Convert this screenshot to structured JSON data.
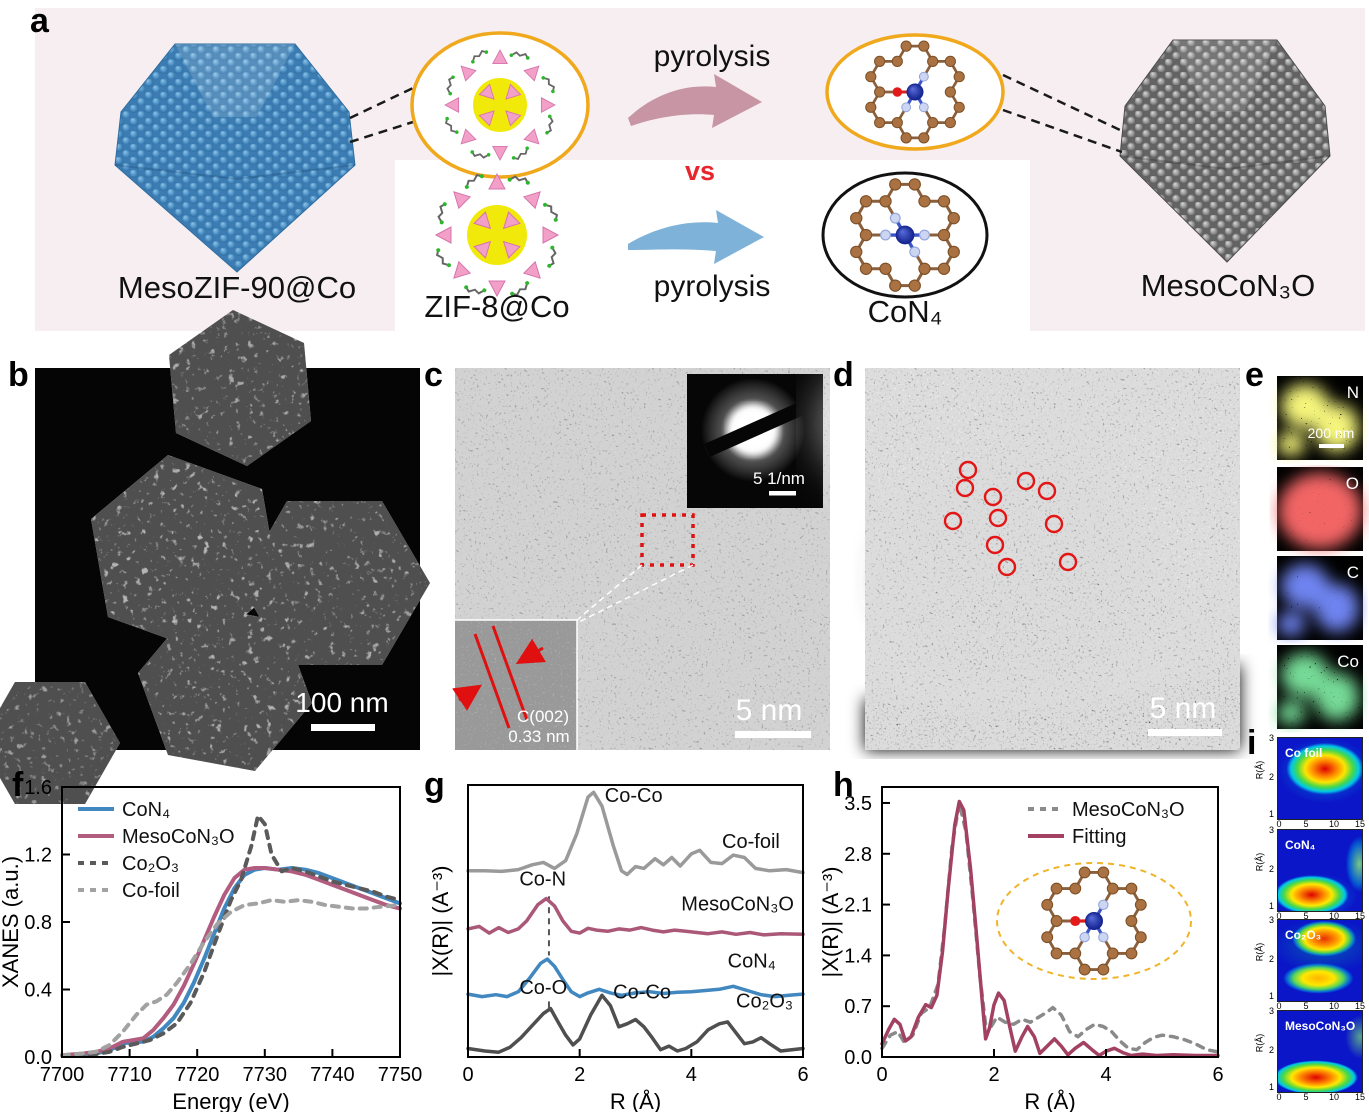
{
  "panel_a": {
    "label": "a",
    "left_particle_label": "MesoZIF-90@Co",
    "zif_inset_label": "ZIF-8@Co",
    "vs_label": "vs",
    "pyrolysis_top": "pyrolysis",
    "pyrolysis_bottom": "pyrolysis",
    "con4_label": "CoN₄",
    "right_particle_label": "MesoCoN₃O",
    "colors": {
      "background": "#f7eef1",
      "left_particle": "#4a8fc4",
      "right_particle": "#787878",
      "arrow_top": "#c795a4",
      "arrow_bottom": "#7fb2d8",
      "vs": "#e8252c",
      "inset_ring": "#f0a81c"
    }
  },
  "panel_b": {
    "label": "b",
    "scalebar": "100 nm"
  },
  "panel_c": {
    "label": "c",
    "scalebar": "5 nm",
    "saed_scalebar": "5 1/nm",
    "lattice_label_line1": "C(002)",
    "lattice_label_line2": "0.33 nm"
  },
  "panel_d": {
    "label": "d",
    "scalebar": "5 nm",
    "marker_color": "#e31515",
    "atom_markers": [
      [
        103,
        102
      ],
      [
        161,
        113
      ],
      [
        182,
        123
      ],
      [
        100,
        120
      ],
      [
        128,
        129
      ],
      [
        88,
        153
      ],
      [
        133,
        150
      ],
      [
        189,
        156
      ],
      [
        130,
        177
      ],
      [
        142,
        199
      ],
      [
        203,
        194
      ]
    ]
  },
  "panel_e": {
    "label": "e",
    "scalebar": "200 nm",
    "maps": [
      {
        "element": "N",
        "color": "#e8e832"
      },
      {
        "element": "O",
        "color": "#e22222"
      },
      {
        "element": "C",
        "color": "#2a3ae0"
      },
      {
        "element": "Co",
        "color": "#2eb44e"
      }
    ]
  },
  "panel_f": {
    "label": "f"
  },
  "panel_g": {
    "label": "g"
  },
  "panel_h": {
    "label": "h"
  },
  "panel_i": {
    "label": "i",
    "ylabel": "R(Å)",
    "yticks": [
      "3",
      "2",
      "1"
    ],
    "xticks": [
      "0",
      "5",
      "10",
      "15"
    ],
    "maps": [
      {
        "name": "Co foil"
      },
      {
        "name": "CoN₄"
      },
      {
        "name": "Co₂O₃"
      },
      {
        "name": "MesoCoN₃O"
      }
    ]
  },
  "chart_data": [
    {
      "panel": "f",
      "type": "line",
      "title": "",
      "xlabel": "Energy (eV)",
      "ylabel": "XANES (a.u.)",
      "xlim": [
        7700,
        7750
      ],
      "ylim": [
        0,
        1.6
      ],
      "xticks": [
        7700,
        7710,
        7720,
        7730,
        7740,
        7750
      ],
      "xtick_labels": [
        "7700",
        "7710",
        "7720",
        "7730",
        "7740",
        "7750"
      ],
      "yticks": [
        0,
        0.4,
        0.8,
        1.2,
        1.6
      ],
      "ytick_labels": [
        "0.0",
        "0.4",
        "0.8",
        "1.2",
        "1.6"
      ],
      "legend": {
        "anchor": "tl"
      },
      "grid": false,
      "series": [
        {
          "name": "CoN₄",
          "color": "#4187c0",
          "width": 4,
          "x": [
            7700,
            7703,
            7705,
            7707,
            7709,
            7710.5,
            7712,
            7713.5,
            7715,
            7716.5,
            7718,
            7719.5,
            7721,
            7722.5,
            7724,
            7725.5,
            7727,
            7728.5,
            7730,
            7732,
            7734,
            7736,
            7738,
            7740,
            7742,
            7744,
            7746,
            7748,
            7750
          ],
          "y": [
            0.01,
            0.01,
            0.02,
            0.04,
            0.08,
            0.09,
            0.09,
            0.12,
            0.17,
            0.23,
            0.32,
            0.44,
            0.58,
            0.73,
            0.88,
            1.0,
            1.08,
            1.11,
            1.12,
            1.11,
            1.12,
            1.11,
            1.09,
            1.06,
            1.03,
            1.0,
            0.97,
            0.94,
            0.91
          ]
        },
        {
          "name": "MesoCoN₃O",
          "color": "#b25c7f",
          "width": 4,
          "x": [
            7700,
            7703,
            7705,
            7707,
            7709,
            7710.5,
            7712,
            7713.5,
            7715,
            7716.5,
            7718,
            7719.5,
            7721,
            7722.5,
            7724,
            7725.5,
            7727,
            7728.5,
            7730,
            7732,
            7734,
            7736,
            7738,
            7740,
            7742,
            7744,
            7746,
            7748,
            7750
          ],
          "y": [
            0.01,
            0.02,
            0.03,
            0.05,
            0.09,
            0.1,
            0.11,
            0.16,
            0.23,
            0.31,
            0.42,
            0.55,
            0.69,
            0.83,
            0.96,
            1.06,
            1.11,
            1.12,
            1.12,
            1.11,
            1.1,
            1.08,
            1.05,
            1.02,
            0.99,
            0.96,
            0.93,
            0.9,
            0.88
          ]
        },
        {
          "name": "Co₂O₃",
          "color": "#5a5a5a",
          "width": 4,
          "dash": "7 7",
          "x": [
            7700,
            7704,
            7707,
            7709,
            7711,
            7713,
            7715,
            7717,
            7719,
            7721,
            7723,
            7725,
            7726.5,
            7728,
            7729,
            7730,
            7731,
            7732.5,
            7734,
            7736,
            7738,
            7740,
            7742,
            7744,
            7746,
            7748,
            7750
          ],
          "y": [
            0.01,
            0.01,
            0.03,
            0.06,
            0.08,
            0.1,
            0.14,
            0.2,
            0.32,
            0.5,
            0.72,
            0.93,
            1.05,
            1.25,
            1.43,
            1.38,
            1.2,
            1.1,
            1.12,
            1.1,
            1.07,
            1.04,
            1.02,
            1.0,
            0.98,
            0.95,
            0.93
          ]
        },
        {
          "name": "Co-foil",
          "color": "#a2a2a2",
          "width": 4,
          "dash": "7 7",
          "x": [
            7700,
            7703,
            7705,
            7707,
            7709,
            7711,
            7712.5,
            7714,
            7715.5,
            7717,
            7719,
            7721,
            7723,
            7725,
            7727,
            7729,
            7731,
            7733,
            7735,
            7737,
            7739,
            7741,
            7743,
            7745,
            7747,
            7750
          ],
          "y": [
            0.01,
            0.02,
            0.03,
            0.07,
            0.15,
            0.25,
            0.31,
            0.33,
            0.37,
            0.44,
            0.55,
            0.68,
            0.79,
            0.86,
            0.9,
            0.91,
            0.93,
            0.92,
            0.93,
            0.92,
            0.9,
            0.89,
            0.88,
            0.88,
            0.89,
            0.9
          ]
        }
      ]
    },
    {
      "panel": "g",
      "type": "line",
      "title": "",
      "xlabel": "R (Å)",
      "ylabel": "|X(R)| (A⁻³)",
      "xlim": [
        0,
        6
      ],
      "ylim": [
        0,
        4.5
      ],
      "xticks": [
        0,
        2,
        4,
        6
      ],
      "xtick_labels": [
        "0",
        "2",
        "4",
        "6"
      ],
      "yticks": [],
      "ytick_labels": [],
      "grid": false,
      "ylabel_off": 20,
      "series": [
        {
          "name": "Co-foil",
          "color": "#9a9a9a",
          "width": 3.5,
          "x": [
            0,
            0.3,
            0.6,
            0.9,
            1.15,
            1.35,
            1.55,
            1.75,
            1.95,
            2.15,
            2.25,
            2.4,
            2.6,
            2.75,
            2.85,
            3.0,
            3.15,
            3.35,
            3.5,
            3.65,
            3.8,
            4.0,
            4.15,
            4.35,
            4.55,
            4.75,
            4.95,
            5.15,
            5.4,
            5.7,
            6.0
          ],
          "y": [
            3.08,
            3.08,
            3.07,
            3.1,
            3.18,
            3.22,
            3.12,
            3.25,
            3.7,
            4.3,
            4.38,
            4.15,
            3.5,
            3.08,
            3.02,
            3.15,
            3.12,
            3.28,
            3.18,
            3.3,
            3.16,
            3.36,
            3.42,
            3.22,
            3.2,
            3.34,
            3.3,
            3.12,
            3.08,
            3.1,
            3.05
          ]
        },
        {
          "name": "MesoCoN₃O",
          "color": "#ab5878",
          "width": 3.5,
          "x": [
            0,
            0.2,
            0.38,
            0.55,
            0.72,
            0.9,
            1.05,
            1.25,
            1.4,
            1.55,
            1.7,
            1.85,
            2.0,
            2.15,
            2.3,
            2.5,
            2.7,
            2.9,
            3.1,
            3.3,
            3.5,
            3.7,
            3.9,
            4.1,
            4.3,
            4.55,
            4.8,
            5.05,
            5.3,
            5.6,
            6.0
          ],
          "y": [
            2.12,
            2.16,
            2.05,
            2.14,
            2.06,
            2.12,
            2.25,
            2.52,
            2.62,
            2.5,
            2.25,
            2.08,
            2.05,
            2.13,
            2.1,
            2.08,
            2.12,
            2.1,
            2.14,
            2.1,
            2.07,
            2.1,
            2.08,
            2.06,
            2.04,
            2.07,
            2.03,
            2.06,
            2.02,
            2.04,
            2.03
          ]
        },
        {
          "name": "CoN₄",
          "color": "#4187c0",
          "width": 3.5,
          "x": [
            0,
            0.25,
            0.5,
            0.7,
            0.9,
            1.1,
            1.3,
            1.42,
            1.55,
            1.7,
            1.85,
            2.0,
            2.15,
            2.35,
            2.55,
            2.75,
            3.0,
            3.25,
            3.5,
            3.75,
            4.0,
            4.25,
            4.5,
            4.75,
            5.0,
            5.25,
            5.5,
            5.75,
            6.0
          ],
          "y": [
            1.04,
            1.0,
            1.03,
            1.0,
            1.08,
            1.3,
            1.55,
            1.62,
            1.5,
            1.28,
            1.08,
            1.0,
            1.06,
            1.12,
            1.06,
            1.02,
            1.06,
            1.08,
            1.05,
            1.07,
            1.08,
            1.1,
            1.12,
            1.17,
            1.1,
            1.03,
            1.0,
            1.02,
            1.04
          ]
        },
        {
          "name": "Co₂O₃",
          "color": "#4f4f4f",
          "width": 3.5,
          "x": [
            0,
            0.3,
            0.55,
            0.75,
            0.95,
            1.15,
            1.35,
            1.48,
            1.6,
            1.75,
            1.88,
            2.0,
            2.2,
            2.4,
            2.55,
            2.7,
            2.85,
            3.0,
            3.15,
            3.3,
            3.45,
            3.6,
            3.75,
            3.9,
            4.1,
            4.3,
            4.5,
            4.65,
            4.8,
            4.95,
            5.1,
            5.25,
            5.4,
            5.6,
            5.8,
            6.0
          ],
          "y": [
            0.14,
            0.1,
            0.08,
            0.16,
            0.32,
            0.52,
            0.72,
            0.8,
            0.6,
            0.36,
            0.2,
            0.3,
            0.7,
            1.02,
            0.85,
            0.5,
            0.55,
            0.62,
            0.5,
            0.32,
            0.12,
            0.18,
            0.1,
            0.14,
            0.25,
            0.45,
            0.55,
            0.58,
            0.4,
            0.22,
            0.25,
            0.32,
            0.22,
            0.1,
            0.12,
            0.14
          ]
        }
      ],
      "annotations": [
        {
          "text": "Co-Co",
          "x": 2.45,
          "y": 4.22
        },
        {
          "text": "Co-foil",
          "x": 4.55,
          "y": 3.46
        },
        {
          "text": "Co-N",
          "x": 0.92,
          "y": 2.84
        },
        {
          "text": "MesoCoN₃O",
          "x": 3.82,
          "y": 2.42
        },
        {
          "text": "CoN₄",
          "x": 4.65,
          "y": 1.48
        },
        {
          "text": "Co-O",
          "x": 0.92,
          "y": 1.04
        },
        {
          "text": "Co-Co",
          "x": 2.6,
          "y": 0.97
        },
        {
          "text": "Co₂O₃",
          "x": 4.8,
          "y": 0.82
        }
      ],
      "ann_lines": [
        {
          "x1": 1.45,
          "y1": 2.66,
          "x2": 1.45,
          "y2": 1.68,
          "dash": "6 5"
        },
        {
          "x1": 1.45,
          "y1": 0.92,
          "x2": 1.45,
          "y2": 0.76
        }
      ]
    },
    {
      "panel": "h",
      "type": "line",
      "title": "",
      "xlabel": "R (Å)",
      "ylabel": "|X(R)| (A⁻³)",
      "xlim": [
        0,
        6
      ],
      "ylim": [
        0,
        3.72
      ],
      "xticks": [
        0,
        2,
        4,
        6
      ],
      "xtick_labels": [
        "0",
        "2",
        "4",
        "6"
      ],
      "yticks": [
        0,
        0.7,
        1.4,
        2.1,
        2.8,
        3.5
      ],
      "ytick_labels": [
        "0.0",
        "0.7",
        "1.4",
        "2.1",
        "2.8",
        "3.5"
      ],
      "legend": {
        "anchor": "tr"
      },
      "grid": false,
      "series": [
        {
          "name": "MesoCoN₃O",
          "color": "#8a8a8a",
          "width": 3.5,
          "dash": "7 7",
          "x": [
            0,
            0.15,
            0.28,
            0.4,
            0.55,
            0.7,
            0.85,
            1.0,
            1.12,
            1.25,
            1.38,
            1.5,
            1.62,
            1.75,
            1.85,
            1.95,
            2.05,
            2.2,
            2.35,
            2.5,
            2.65,
            2.8,
            2.95,
            3.05,
            3.2,
            3.35,
            3.5,
            3.65,
            3.8,
            3.95,
            4.1,
            4.25,
            4.4,
            4.55,
            4.7,
            4.85,
            5.0,
            5.2,
            5.4,
            5.6,
            5.8,
            6.0
          ],
          "y": [
            0.12,
            0.3,
            0.35,
            0.2,
            0.3,
            0.6,
            0.68,
            1.0,
            1.8,
            2.9,
            3.5,
            3.1,
            2.2,
            1.1,
            0.45,
            0.42,
            0.55,
            0.48,
            0.45,
            0.52,
            0.48,
            0.55,
            0.62,
            0.68,
            0.58,
            0.35,
            0.28,
            0.38,
            0.45,
            0.42,
            0.35,
            0.22,
            0.12,
            0.1,
            0.2,
            0.27,
            0.3,
            0.28,
            0.24,
            0.18,
            0.1,
            0.07
          ]
        },
        {
          "name": "Fitting",
          "color": "#a24162",
          "width": 3.5,
          "x": [
            0,
            0.12,
            0.22,
            0.32,
            0.42,
            0.52,
            0.65,
            0.78,
            0.88,
            0.98,
            1.08,
            1.18,
            1.3,
            1.38,
            1.46,
            1.58,
            1.68,
            1.78,
            1.85,
            1.92,
            2.0,
            2.08,
            2.18,
            2.28,
            2.38,
            2.5,
            2.6,
            2.72,
            2.82,
            2.95,
            3.08,
            3.2,
            3.32,
            3.45,
            3.6,
            3.75,
            3.88,
            4.0,
            4.15,
            4.3,
            4.45,
            4.65,
            4.9,
            5.2,
            5.6,
            6.0
          ],
          "y": [
            0.18,
            0.38,
            0.52,
            0.45,
            0.22,
            0.28,
            0.55,
            0.72,
            0.68,
            0.85,
            1.45,
            2.3,
            3.2,
            3.52,
            3.4,
            2.6,
            1.75,
            0.85,
            0.25,
            0.4,
            0.72,
            0.88,
            0.78,
            0.42,
            0.08,
            0.28,
            0.42,
            0.28,
            0.05,
            0.15,
            0.25,
            0.15,
            0.03,
            0.12,
            0.2,
            0.1,
            0.02,
            0.08,
            0.12,
            0.06,
            0.02,
            0.04,
            0.02,
            0.03,
            0.02,
            0.02
          ]
        }
      ]
    },
    {
      "panel": "i",
      "type": "heatmap",
      "name": "Co foil",
      "x_range_k": [
        0,
        15
      ],
      "y_range_R": [
        1,
        3
      ],
      "peaks": [
        {
          "k": 8,
          "R": 2.2
        }
      ]
    },
    {
      "panel": "i",
      "type": "heatmap",
      "name": "CoN₄",
      "x_range_k": [
        0,
        15
      ],
      "y_range_R": [
        1,
        3
      ],
      "peaks": [
        {
          "k": 6,
          "R": 1.4
        }
      ]
    },
    {
      "panel": "i",
      "type": "heatmap",
      "name": "Co₂O₃",
      "x_range_k": [
        0,
        15
      ],
      "y_range_R": [
        1,
        3
      ],
      "peaks": [
        {
          "k": 7,
          "R": 2.5
        },
        {
          "k": 6.5,
          "R": 1.5
        }
      ]
    },
    {
      "panel": "i",
      "type": "heatmap",
      "name": "MesoCoN₃O",
      "x_range_k": [
        0,
        15
      ],
      "y_range_R": [
        1,
        3
      ],
      "peaks": [
        {
          "k": 6.5,
          "R": 1.35
        }
      ]
    }
  ]
}
